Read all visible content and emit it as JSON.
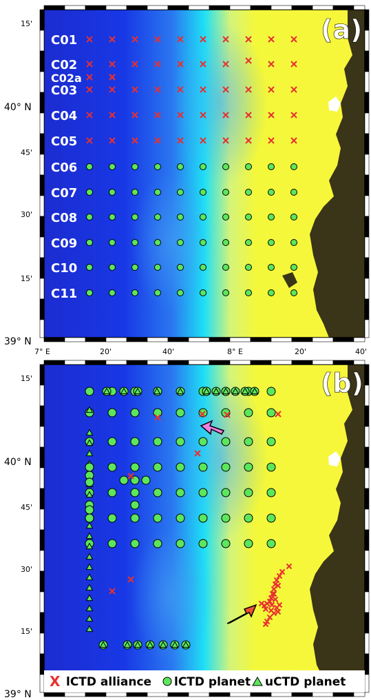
{
  "panel_a": {
    "label": "(a)",
    "rows": [
      {
        "name": "C01",
        "lat": "40°17'",
        "type": "x"
      },
      {
        "name": "C02",
        "lat": "40°07'",
        "type": "x"
      },
      {
        "name": "C02a",
        "lat": "40°02'",
        "type": "x"
      },
      {
        "name": "C03",
        "lat": "39°57'",
        "type": "x"
      },
      {
        "name": "C04",
        "lat": "39°52'",
        "type": "x"
      },
      {
        "name": "C05",
        "lat": "39°47'",
        "type": "x"
      },
      {
        "name": "C06",
        "lat": "39°42'",
        "type": "dot"
      },
      {
        "name": "C07",
        "lat": "39°37'",
        "type": "dot"
      },
      {
        "name": "C08",
        "lat": "39°32'",
        "type": "dot"
      },
      {
        "name": "C09",
        "lat": "39°27'",
        "type": "dot"
      },
      {
        "name": "C10",
        "lat": "39°22'",
        "type": "dot"
      },
      {
        "name": "C11",
        "lat": "39°17'",
        "type": "dot"
      }
    ]
  },
  "panel_b": {
    "label": "(b)"
  },
  "axes": {
    "lat_ticks": [
      "15'",
      "40° N",
      "45'",
      "30'",
      "15'",
      "39° N"
    ],
    "lon_ticks": [
      "7° E",
      "20'",
      "40'",
      "8° E",
      "20'",
      "40'"
    ]
  },
  "legend": {
    "items": [
      {
        "symbol": "x",
        "label": "lCTD alliance",
        "color": "#e83030"
      },
      {
        "symbol": "circle",
        "label": "lCTD planet",
        "color": "#5ce65c"
      },
      {
        "symbol": "triangle",
        "label": "uCTD planet",
        "color": "#5ce65c"
      }
    ]
  },
  "colors": {
    "deep": "#1a2fd6",
    "mid": "#00d8ff",
    "shallow": "#f4f83a",
    "land": "#3a3418",
    "lctd_alliance": "#e83030",
    "lctd_planet": "#5ce65c"
  }
}
